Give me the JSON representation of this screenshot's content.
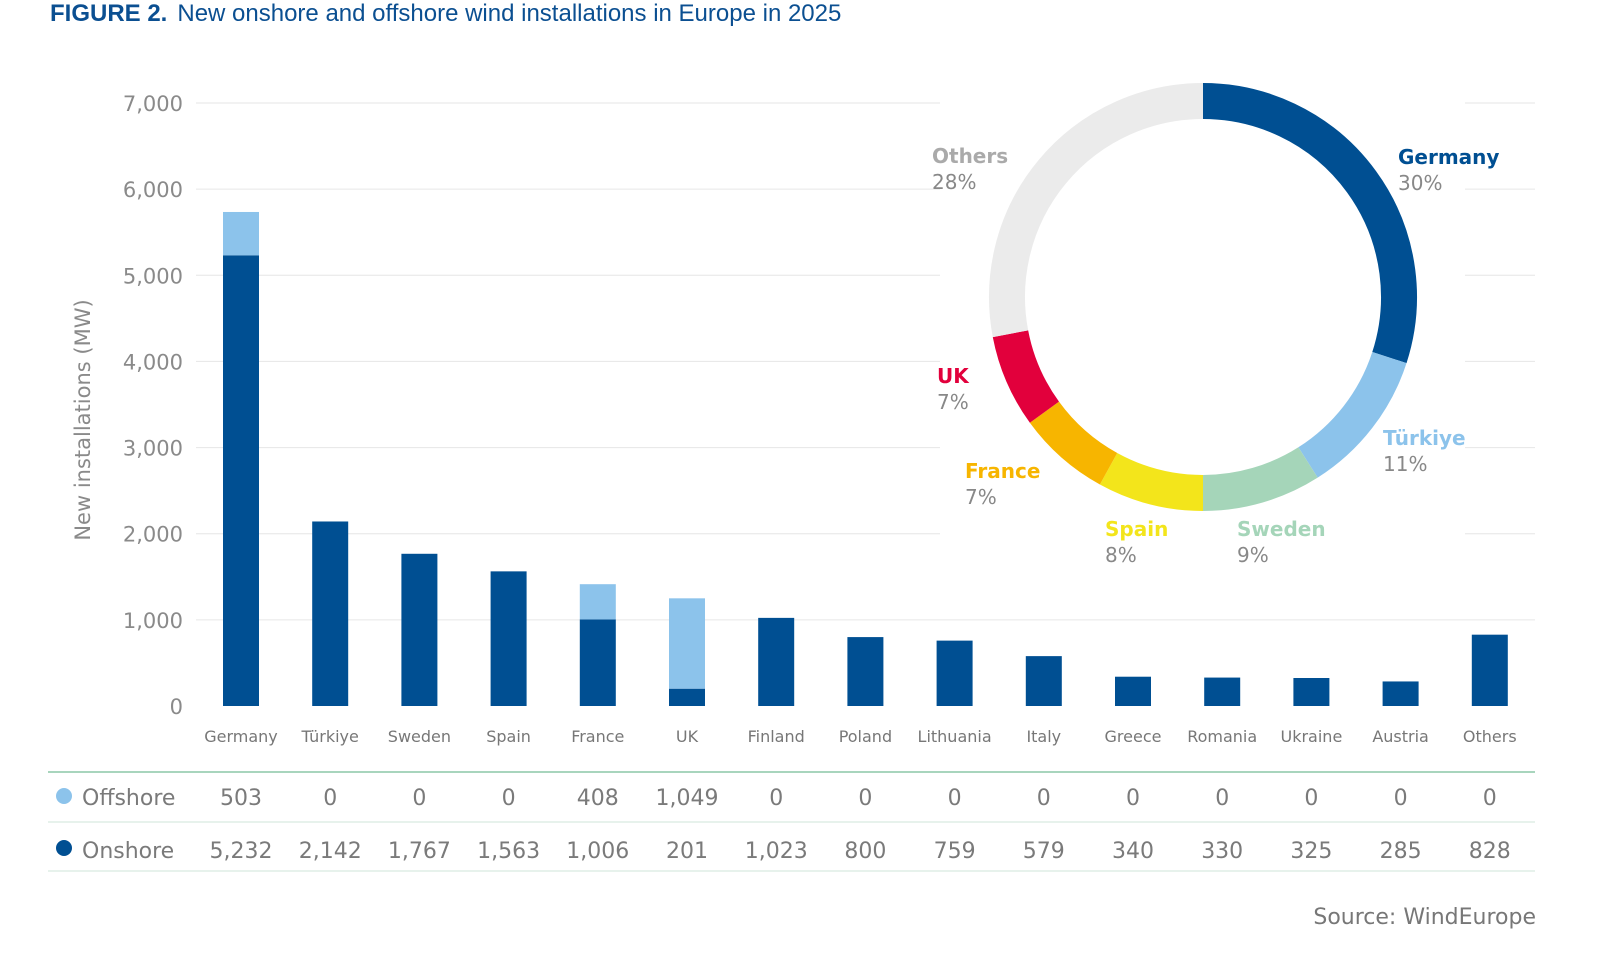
{
  "title": {
    "figure": "FIGURE 2.",
    "text": "New onshore and offshore wind installations in Europe in 2025"
  },
  "source": "Source: WindEurope",
  "colors": {
    "onshore": "#004f92",
    "offshore": "#8cc3eb",
    "grid": "#e6e6e6",
    "table_top_rule": "#a8d5bd"
  },
  "chart_data": [
    {
      "type": "bar",
      "stacked": true,
      "ylabel": "New installations (MW)",
      "ylim": [
        0,
        7000
      ],
      "yticks": [
        "0",
        "1,000",
        "2,000",
        "3,000",
        "4,000",
        "5,000",
        "6,000",
        "7,000"
      ],
      "grid": true,
      "categories": [
        "Germany",
        "Türkiye",
        "Sweden",
        "Spain",
        "France",
        "UK",
        "Finland",
        "Poland",
        "Lithuania",
        "Italy",
        "Greece",
        "Romania",
        "Ukraine",
        "Austria",
        "Others"
      ],
      "series": [
        {
          "name": "Onshore",
          "color": "#004f92",
          "values": [
            5232,
            2142,
            1767,
            1563,
            1006,
            201,
            1023,
            800,
            759,
            579,
            340,
            330,
            325,
            285,
            828
          ],
          "labels": [
            "5,232",
            "2,142",
            "1,767",
            "1,563",
            "1,006",
            "201",
            "1,023",
            "800",
            "759",
            "579",
            "340",
            "330",
            "325",
            "285",
            "828"
          ]
        },
        {
          "name": "Offshore",
          "color": "#8cc3eb",
          "values": [
            503,
            0,
            0,
            0,
            408,
            1049,
            0,
            0,
            0,
            0,
            0,
            0,
            0,
            0,
            0
          ],
          "labels": [
            "503",
            "0",
            "0",
            "0",
            "408",
            "1,049",
            "0",
            "0",
            "0",
            "0",
            "0",
            "0",
            "0",
            "0",
            "0"
          ]
        }
      ]
    },
    {
      "type": "pie",
      "donut": true,
      "slices": [
        {
          "label": "Germany",
          "pct_label": "30%",
          "value": 30,
          "color": "#004f92"
        },
        {
          "label": "Türkiye",
          "pct_label": "11%",
          "value": 11,
          "color": "#8cc3eb"
        },
        {
          "label": "Sweden",
          "pct_label": "9%",
          "value": 9,
          "color": "#a5d5b9"
        },
        {
          "label": "Spain",
          "pct_label": "8%",
          "value": 8,
          "color": "#f3e51b"
        },
        {
          "label": "France",
          "pct_label": "7%",
          "value": 7,
          "color": "#f7b500"
        },
        {
          "label": "UK",
          "pct_label": "7%",
          "value": 7,
          "color": "#e2003c"
        },
        {
          "label": "Others",
          "pct_label": "28%",
          "value": 28,
          "color": "#ebebeb"
        }
      ]
    }
  ]
}
